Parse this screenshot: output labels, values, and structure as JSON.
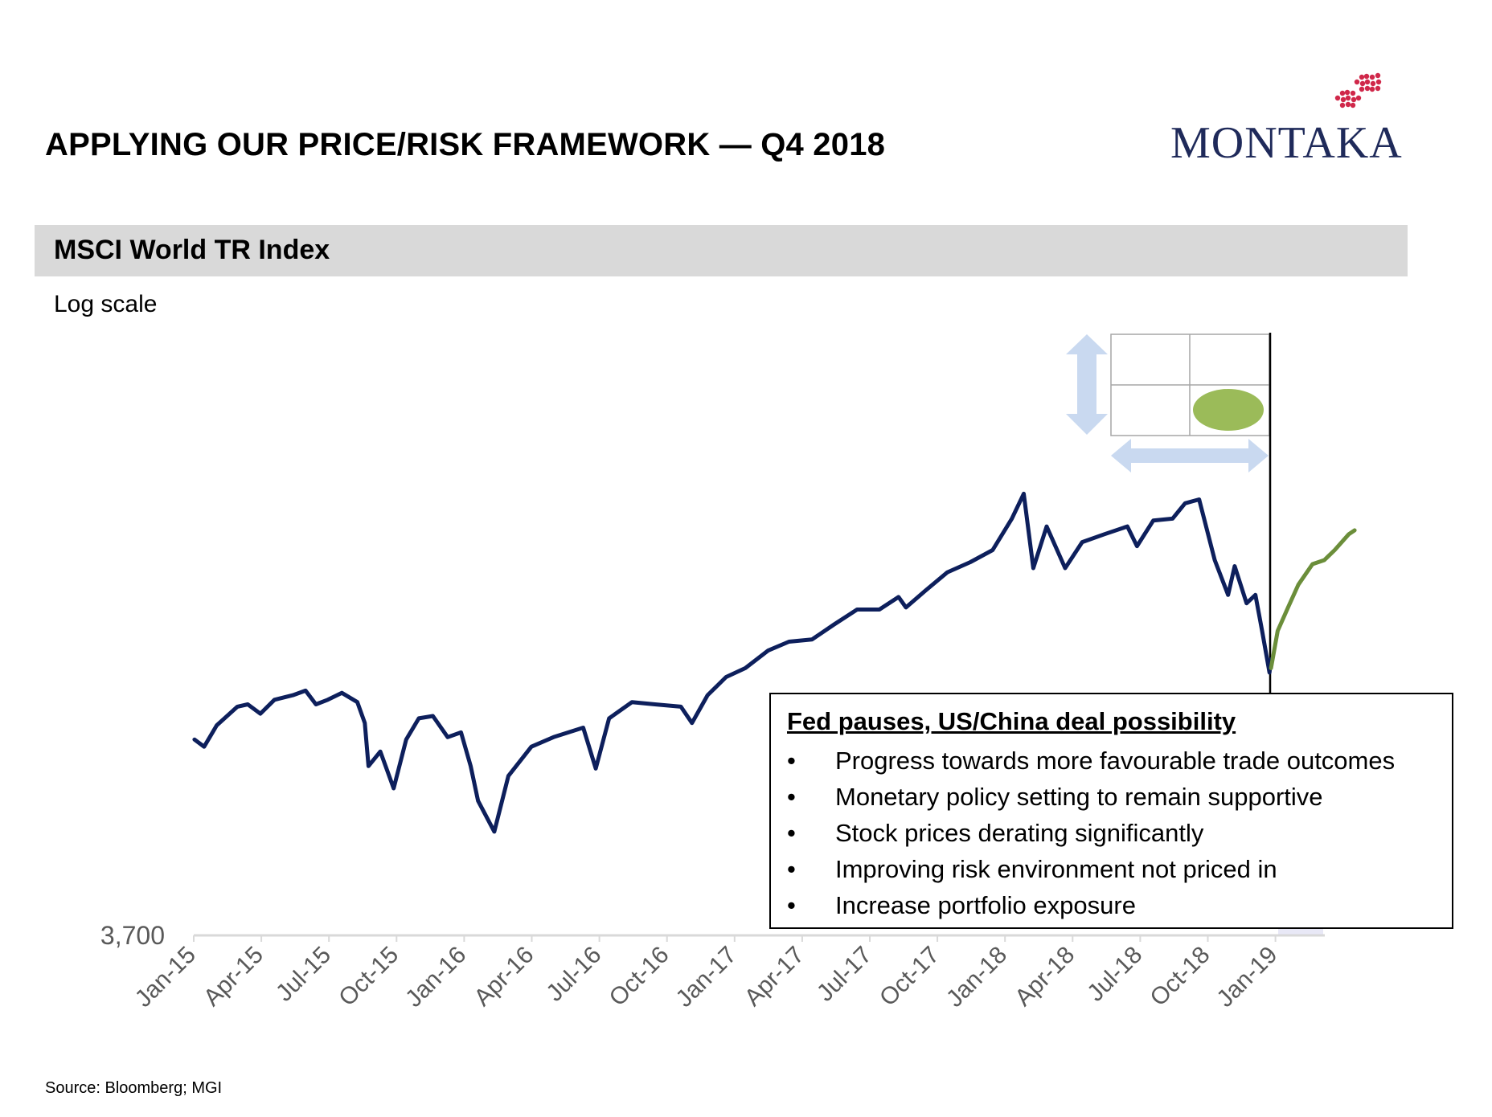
{
  "header": {
    "title": "APPLYING OUR PRICE/RISK FRAMEWORK — Q4 2018",
    "logo_text": "MONTAKA"
  },
  "section": {
    "title": "MSCI World TR Index",
    "scale_note": "Log scale"
  },
  "callout": {
    "title": "Fed pauses, US/China deal possibility",
    "bullet_glyph": "•",
    "items": [
      "Progress towards more favourable trade outcomes",
      "Monetary policy setting to remain supportive",
      "Stock prices derating significantly",
      "Improving risk environment not priced in",
      "Increase portfolio exposure"
    ]
  },
  "source": "Source: Bloomberg; MGI",
  "colors": {
    "series_main": "#0d1f5c",
    "series_recent": "#6b8e3a",
    "logo_text": "#1f2a5a",
    "logo_mark": "#d0284a",
    "framework_arrow": "#c9d9f0",
    "framework_oval": "#9bbb59",
    "axis": "#d9d9d9",
    "section_bar": "#d9d9d9"
  },
  "chart_data": {
    "type": "line",
    "y_scale": "log",
    "ylim": [
      3700,
      6500
    ],
    "y_tick_labels": [
      "3,700"
    ],
    "x_tick_labels": [
      "Jan-15",
      "Apr-15",
      "Jul-15",
      "Oct-15",
      "Jan-16",
      "Apr-16",
      "Jul-16",
      "Oct-16",
      "Jan-17",
      "Apr-17",
      "Jul-17",
      "Oct-17",
      "Jan-18",
      "Apr-18",
      "Jul-18",
      "Oct-18",
      "Jan-19"
    ],
    "series": [
      {
        "key": "main",
        "color": "#0d1f5c",
        "points": [
          [
            "2015-01-02",
            4450
          ],
          [
            "2015-01-15",
            4420
          ],
          [
            "2015-02-01",
            4510
          ],
          [
            "2015-03-01",
            4590
          ],
          [
            "2015-03-15",
            4600
          ],
          [
            "2015-04-01",
            4560
          ],
          [
            "2015-04-20",
            4620
          ],
          [
            "2015-05-15",
            4640
          ],
          [
            "2015-06-01",
            4660
          ],
          [
            "2015-06-15",
            4600
          ],
          [
            "2015-07-01",
            4620
          ],
          [
            "2015-07-20",
            4650
          ],
          [
            "2015-08-10",
            4610
          ],
          [
            "2015-08-20",
            4520
          ],
          [
            "2015-08-25",
            4340
          ],
          [
            "2015-09-10",
            4400
          ],
          [
            "2015-09-28",
            4250
          ],
          [
            "2015-10-15",
            4450
          ],
          [
            "2015-11-01",
            4540
          ],
          [
            "2015-11-20",
            4550
          ],
          [
            "2015-12-10",
            4460
          ],
          [
            "2015-12-28",
            4480
          ],
          [
            "2016-01-10",
            4340
          ],
          [
            "2016-01-20",
            4200
          ],
          [
            "2016-02-11",
            4080
          ],
          [
            "2016-03-01",
            4300
          ],
          [
            "2016-04-01",
            4420
          ],
          [
            "2016-05-01",
            4460
          ],
          [
            "2016-06-10",
            4500
          ],
          [
            "2016-06-27",
            4330
          ],
          [
            "2016-07-15",
            4540
          ],
          [
            "2016-08-15",
            4610
          ],
          [
            "2016-09-15",
            4600
          ],
          [
            "2016-10-20",
            4590
          ],
          [
            "2016-11-04",
            4520
          ],
          [
            "2016-11-25",
            4640
          ],
          [
            "2016-12-20",
            4720
          ],
          [
            "2017-01-15",
            4760
          ],
          [
            "2017-02-15",
            4840
          ],
          [
            "2017-03-15",
            4880
          ],
          [
            "2017-04-15",
            4890
          ],
          [
            "2017-05-15",
            4960
          ],
          [
            "2017-06-15",
            5030
          ],
          [
            "2017-07-15",
            5030
          ],
          [
            "2017-08-10",
            5090
          ],
          [
            "2017-08-20",
            5040
          ],
          [
            "2017-09-15",
            5120
          ],
          [
            "2017-10-15",
            5210
          ],
          [
            "2017-11-15",
            5260
          ],
          [
            "2017-12-15",
            5320
          ],
          [
            "2018-01-10",
            5480
          ],
          [
            "2018-01-26",
            5610
          ],
          [
            "2018-02-08",
            5230
          ],
          [
            "2018-02-26",
            5440
          ],
          [
            "2018-03-23",
            5230
          ],
          [
            "2018-04-15",
            5360
          ],
          [
            "2018-05-15",
            5400
          ],
          [
            "2018-06-15",
            5440
          ],
          [
            "2018-06-28",
            5340
          ],
          [
            "2018-07-20",
            5470
          ],
          [
            "2018-08-15",
            5480
          ],
          [
            "2018-09-01",
            5560
          ],
          [
            "2018-09-20",
            5580
          ],
          [
            "2018-10-11",
            5270
          ],
          [
            "2018-10-29",
            5100
          ],
          [
            "2018-11-07",
            5240
          ],
          [
            "2018-11-23",
            5060
          ],
          [
            "2018-12-05",
            5100
          ],
          [
            "2018-12-14",
            4930
          ],
          [
            "2018-12-24",
            4740
          ],
          [
            "2018-12-26",
            4800
          ]
        ]
      },
      {
        "key": "recent",
        "color": "#6b8e3a",
        "points": [
          [
            "2018-12-26",
            4760
          ],
          [
            "2019-01-04",
            4930
          ],
          [
            "2019-01-18",
            5040
          ],
          [
            "2019-02-01",
            5150
          ],
          [
            "2019-02-20",
            5250
          ],
          [
            "2019-03-08",
            5270
          ],
          [
            "2019-03-22",
            5320
          ],
          [
            "2019-04-10",
            5400
          ],
          [
            "2019-04-18",
            5420
          ]
        ]
      }
    ],
    "grid": false,
    "legend": "none"
  }
}
